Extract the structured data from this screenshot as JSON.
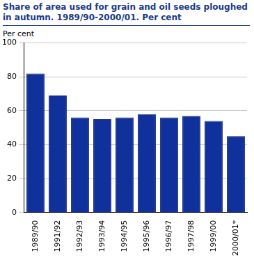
{
  "chart_data": {
    "type": "bar",
    "title": "Share of area used for grain and oil seeds ploughed in autumn. 1989/90-2000/01. Per cent",
    "ylabel": "Per cent",
    "categories": [
      "1989/90",
      "1991/92",
      "1992/93",
      "1993/94",
      "1994/95",
      "1995/96",
      "1996/97",
      "1997/98",
      "1999/00",
      "2000/01*"
    ],
    "values": [
      82,
      69,
      56,
      55,
      56,
      58,
      56,
      57,
      54,
      45
    ],
    "color": "#10309c",
    "ylim": [
      0,
      100
    ],
    "yticks": [
      0,
      20,
      40,
      60,
      80,
      100
    ],
    "grid": true
  }
}
